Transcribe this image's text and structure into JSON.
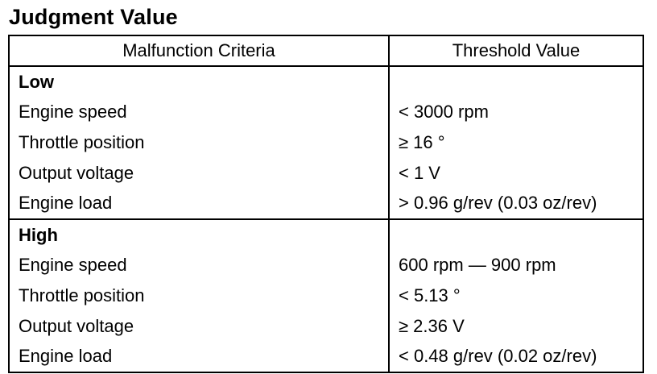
{
  "title": "Judgment Value",
  "table": {
    "headers": [
      "Malfunction Criteria",
      "Threshold Value"
    ],
    "groups": [
      {
        "label": "Low",
        "rows": [
          {
            "criterion": "Engine speed",
            "threshold": "< 3000 rpm"
          },
          {
            "criterion": "Throttle position",
            "threshold": "≥ 16 °"
          },
          {
            "criterion": "Output voltage",
            "threshold": "< 1 V"
          },
          {
            "criterion": "Engine load",
            "threshold": "> 0.96 g/rev (0.03 oz/rev)"
          }
        ]
      },
      {
        "label": "High",
        "rows": [
          {
            "criterion": "Engine speed",
            "threshold": "600 rpm — 900 rpm"
          },
          {
            "criterion": "Throttle position",
            "threshold": "< 5.13 °"
          },
          {
            "criterion": "Output voltage",
            "threshold": "≥ 2.36 V"
          },
          {
            "criterion": "Engine load",
            "threshold": "< 0.48 g/rev (0.02 oz/rev)"
          }
        ]
      }
    ]
  }
}
